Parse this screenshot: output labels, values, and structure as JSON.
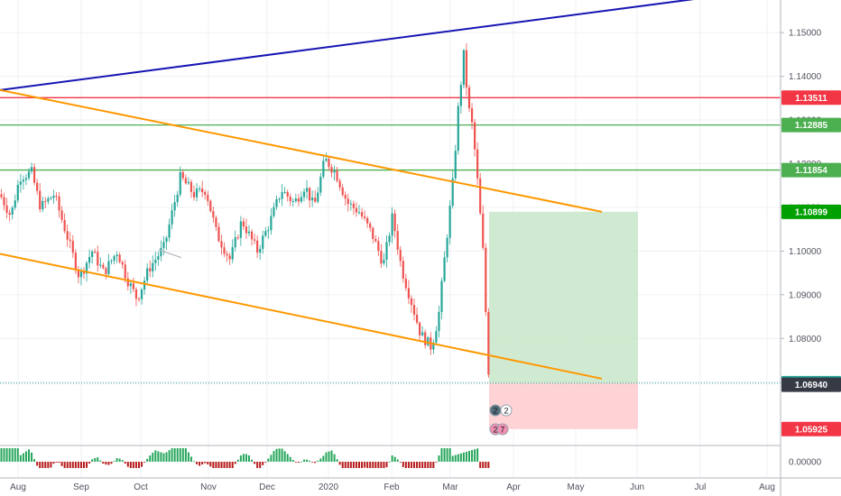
{
  "chart_data": {
    "type": "candlestick",
    "x_ticks": [
      "Aug",
      "Sep",
      "Oct",
      "Nov",
      "Dec",
      "2020",
      "Feb",
      "Mar",
      "Apr",
      "May",
      "Jun",
      "Jul",
      "Aug"
    ],
    "y_ticks": [
      "1.15000",
      "1.14000",
      "1.13000",
      "1.12000",
      "1.11000",
      "1.10000",
      "1.09000",
      "1.08000",
      "1.07000"
    ],
    "ylim": [
      1.0593,
      1.1593
    ],
    "indicator_y_tick": "0.00000",
    "price_levels": [
      {
        "name": "resistance-1",
        "value": 1.13511,
        "label": "1.13511",
        "color": "#f23645",
        "style": "solid"
      },
      {
        "name": "resistance-2",
        "value": 1.12885,
        "label": "1.12885",
        "color": "#4caf50",
        "style": "solid"
      },
      {
        "name": "resistance-3",
        "value": 1.11854,
        "label": "1.11854",
        "color": "#4caf50",
        "style": "solid"
      },
      {
        "name": "take-profit",
        "value": 1.10899,
        "label": "1.10899",
        "color": "#00a000",
        "style": "none"
      },
      {
        "name": "entry",
        "value": 1.06977,
        "label": "1.06977",
        "color": "#26a69a",
        "style": "dotted"
      },
      {
        "name": "last-price",
        "value": 1.0694,
        "label": "1.06940",
        "color": "#363a45",
        "style": "none"
      },
      {
        "name": "stop-loss",
        "value": 1.05925,
        "label": "1.05925",
        "color": "#f23645",
        "style": "none"
      }
    ],
    "trend_lines": [
      {
        "name": "blue-trend-line",
        "color": "#1515b3",
        "from": [
          0,
          1.13685
        ],
        "to": [
          855,
          1.16
        ]
      },
      {
        "name": "upper-channel-line",
        "color": "#ff9800",
        "from": [
          0,
          1.13685
        ],
        "to": [
          667,
          1.10899
        ]
      },
      {
        "name": "lower-channel-line",
        "color": "#ff9800",
        "from": [
          0,
          1.09935
        ],
        "to": [
          667,
          1.07078
        ]
      }
    ],
    "position": {
      "entry": 1.06977,
      "target": 1.10899,
      "stop": 1.05925
    },
    "event_badges": [
      "2",
      "2",
      "2",
      "7"
    ],
    "colors": {
      "up": "#26a69a",
      "down": "#ef5350",
      "profit_zone": "#c8e6c9",
      "loss_zone": "#ffcdd2",
      "grid": "#eef0f3"
    }
  }
}
